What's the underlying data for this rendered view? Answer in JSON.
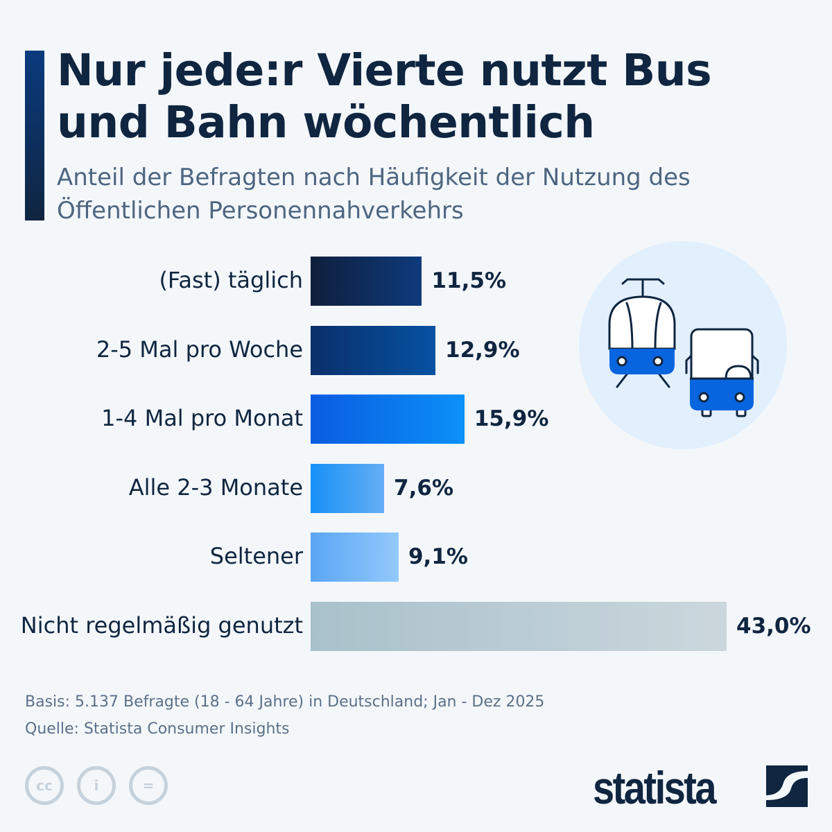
{
  "header": {
    "title": "Nur jede:r Vierte nutzt Bus und Bahn wöchentlich",
    "subtitle": "Anteil der Befragten nach Häufigkeit der Nutzung des Öffentlichen Personennahverkehrs"
  },
  "chart_data": {
    "type": "bar",
    "orientation": "horizontal",
    "categories": [
      "(Fast) täglich",
      "2-5 Mal pro Woche",
      "1-4 Mal pro Monat",
      "Alle 2-3 Monate",
      "Seltener",
      "Nicht regelmäßig genutzt"
    ],
    "values": [
      11.5,
      12.9,
      15.9,
      7.6,
      9.1,
      43.0
    ],
    "value_labels": [
      "11,5%",
      "12,9%",
      "15,9%",
      "7,6%",
      "9,1%",
      "43,0%"
    ],
    "colors": [
      [
        "#0f1f3c",
        "#0e3a7c"
      ],
      [
        "#0b2f6a",
        "#0552a2"
      ],
      [
        "#0a5ce0",
        "#0b90f8"
      ],
      [
        "#1890f7",
        "#66aef4"
      ],
      [
        "#5aa6f4",
        "#93c9fb"
      ],
      [
        "#a9c1cb",
        "#cbd7dd"
      ]
    ],
    "xlim": [
      0,
      43
    ],
    "grid": false
  },
  "footer": {
    "basis": "Basis: 5.137 Befragte (18 - 64 Jahre) in Deutschland; Jan - Dez 2025",
    "source": "Quelle: Statista Consumer Insights",
    "logo": "statista",
    "cc_icons": [
      "cc-icon",
      "by-icon",
      "nd-icon"
    ]
  }
}
